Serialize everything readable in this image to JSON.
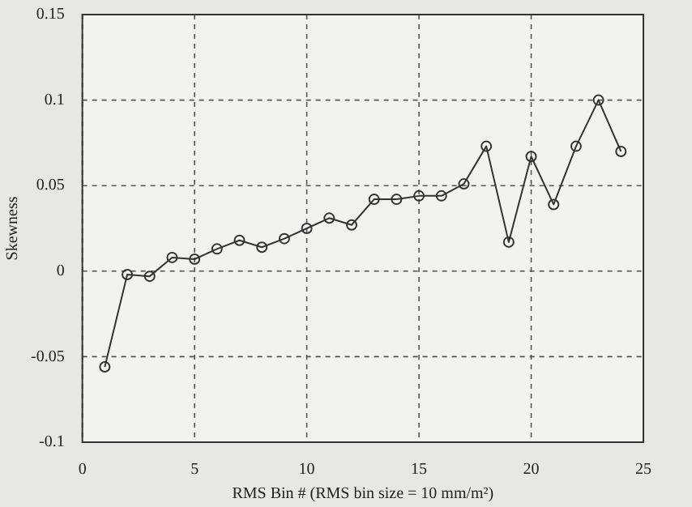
{
  "chart_data": {
    "type": "line",
    "xlabel": "RMS Bin # (RMS bin size = 10 mm/m²)",
    "ylabel": "Skewness",
    "x": [
      1,
      2,
      3,
      4,
      5,
      6,
      7,
      8,
      9,
      10,
      11,
      12,
      13,
      14,
      15,
      16,
      17,
      18,
      19,
      20,
      21,
      22,
      23,
      24
    ],
    "series": [
      {
        "color": "#333333",
        "values": [
          -0.056,
          -0.002,
          -0.003,
          0.008,
          0.007,
          0.013,
          0.018,
          0.014,
          0.019,
          0.025,
          0.031,
          0.027,
          0.042,
          0.042,
          0.044,
          0.044,
          0.051,
          0.073,
          0.017,
          0.067,
          0.039,
          0.073,
          0.1,
          0.07
        ]
      }
    ],
    "xlim": [
      0,
      25
    ],
    "xticks": [
      0,
      5,
      10,
      15,
      20,
      25
    ],
    "ylim": [
      -0.1,
      0.15
    ],
    "yticks": [
      -0.1,
      -0.05,
      0,
      0.05,
      0.1,
      0.15
    ],
    "grid": true,
    "marker": "circle",
    "line_style": "solid",
    "legend": false
  }
}
